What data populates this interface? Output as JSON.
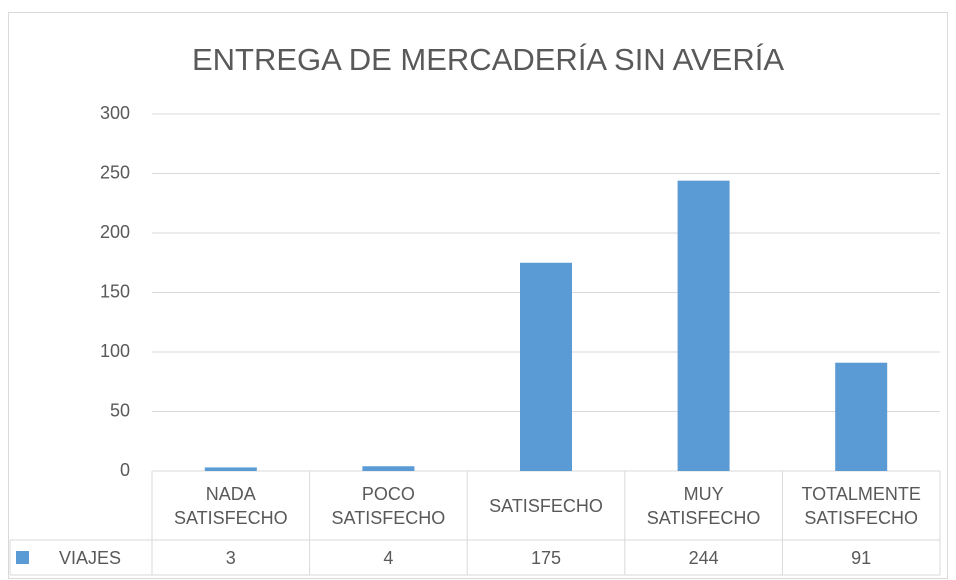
{
  "chart_data": {
    "type": "bar",
    "title": "ENTREGA DE MERCADERÍA SIN AVERÍA",
    "categories": [
      "NADA SATISFECHO",
      "POCO SATISFECHO",
      "SATISFECHO",
      "MUY SATISFECHO",
      "TOTALMENTE SATISFECHO"
    ],
    "series": [
      {
        "name": "VIAJES",
        "color": "#5b9bd5",
        "values": [
          3,
          4,
          175,
          244,
          91
        ]
      }
    ],
    "ylim": [
      0,
      300
    ],
    "yticks": [
      0,
      50,
      100,
      150,
      200,
      250,
      300
    ],
    "grid": true,
    "legend": "table"
  }
}
